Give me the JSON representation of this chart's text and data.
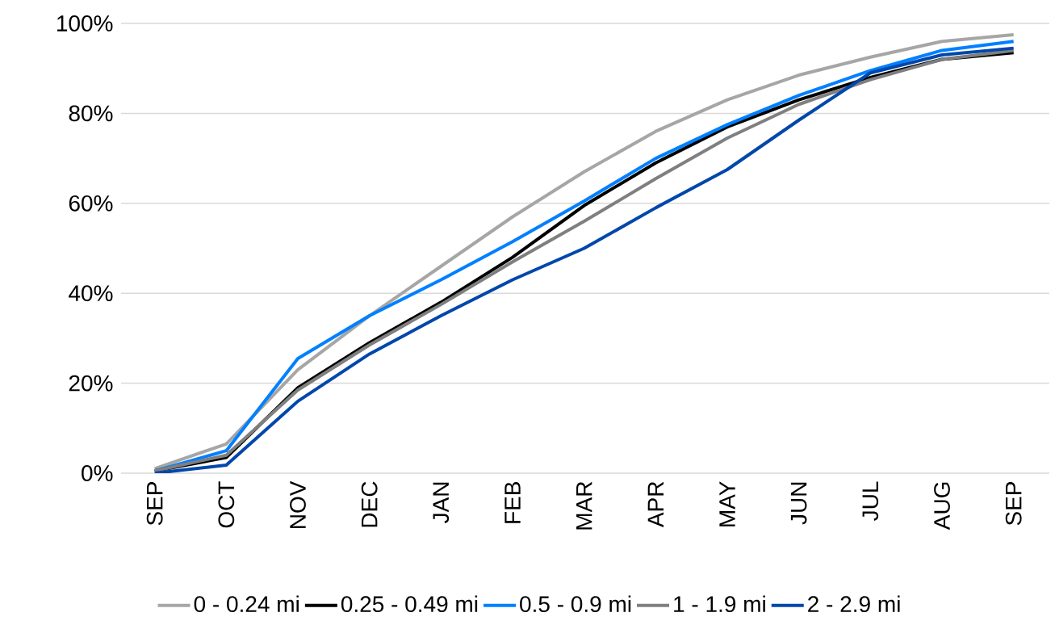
{
  "chart_data": {
    "type": "line",
    "categories": [
      "SEP",
      "OCT",
      "NOV",
      "DEC",
      "JAN",
      "FEB",
      "MAR",
      "APR",
      "MAY",
      "JUN",
      "JUL",
      "AUG",
      "SEP"
    ],
    "series": [
      {
        "name": "0 - 0.24 mi",
        "color": "#a6a6a6",
        "values": [
          1,
          6.5,
          23,
          35,
          46,
          57,
          67,
          76,
          83,
          88.5,
          92.5,
          96,
          97.5
        ]
      },
      {
        "name": "0.25 - 0.49 mi",
        "color": "#000000",
        "values": [
          0.5,
          3.5,
          19,
          29,
          38,
          48,
          59.5,
          69,
          77,
          83,
          88,
          92,
          93.5
        ]
      },
      {
        "name": "0.5 - 0.9 mi",
        "color": "#0080ff",
        "values": [
          0.5,
          5,
          25.5,
          35,
          43,
          51.5,
          60.5,
          70,
          77.5,
          84,
          89.5,
          94,
          96
        ]
      },
      {
        "name": "1 - 1.9 mi",
        "color": "#7f7f7f",
        "values": [
          0.5,
          4,
          18.5,
          28.5,
          37.5,
          47,
          56,
          65.5,
          74.5,
          82,
          87.5,
          92,
          94
        ]
      },
      {
        "name": "2 - 2.9 mi",
        "color": "#0047ab",
        "values": [
          0,
          1.8,
          16,
          26.5,
          35,
          43,
          50,
          59,
          67.5,
          78.5,
          89,
          93,
          94.5
        ]
      }
    ],
    "ylim": [
      0,
      100
    ],
    "yticks": [
      {
        "value": 0,
        "label": "0%"
      },
      {
        "value": 20,
        "label": "20%"
      },
      {
        "value": 40,
        "label": "40%"
      },
      {
        "value": 60,
        "label": "60%"
      },
      {
        "value": 80,
        "label": "80%"
      },
      {
        "value": 100,
        "label": "100%"
      }
    ],
    "grid": "y",
    "legend": "bottom",
    "marker": "none",
    "line_style": "solid"
  }
}
